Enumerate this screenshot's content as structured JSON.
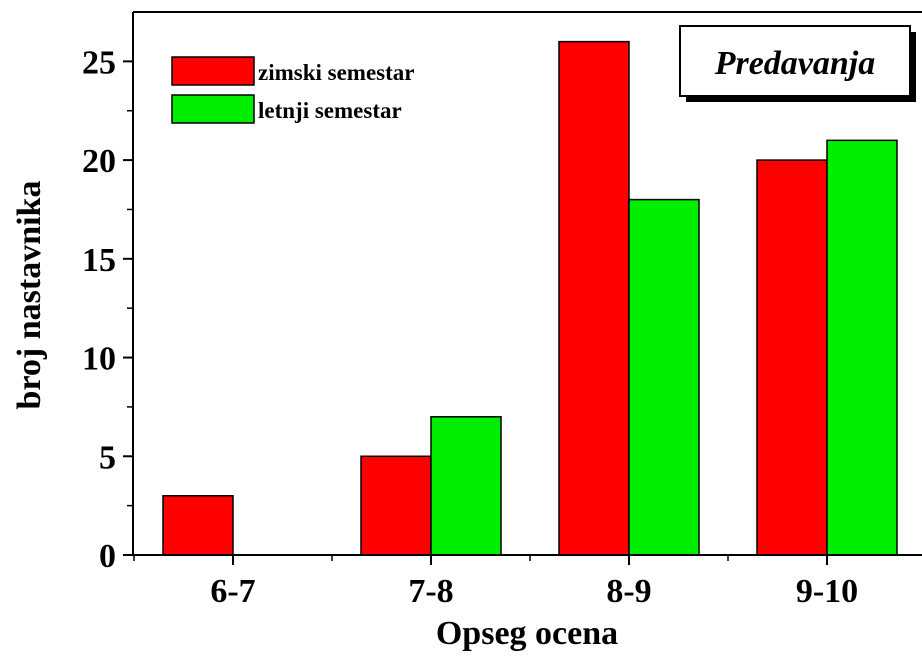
{
  "chart_data": {
    "type": "bar",
    "title": "Predavanja",
    "xlabel": "Opseg ocena",
    "ylabel": "broj nastavnika",
    "categories": [
      "6-7",
      "7-8",
      "8-9",
      "9-10"
    ],
    "series": [
      {
        "name": "zimski semestar",
        "values": [
          3,
          5,
          26,
          20
        ],
        "color": "#ff0000"
      },
      {
        "name": "letnji semestar",
        "values": [
          0,
          7,
          18,
          21
        ],
        "color": "#00ee00"
      }
    ],
    "ylim": [
      0,
      27.5
    ],
    "yticks": [
      0,
      5,
      10,
      15,
      20,
      25
    ],
    "grid": false,
    "legend_position": "top-left"
  }
}
